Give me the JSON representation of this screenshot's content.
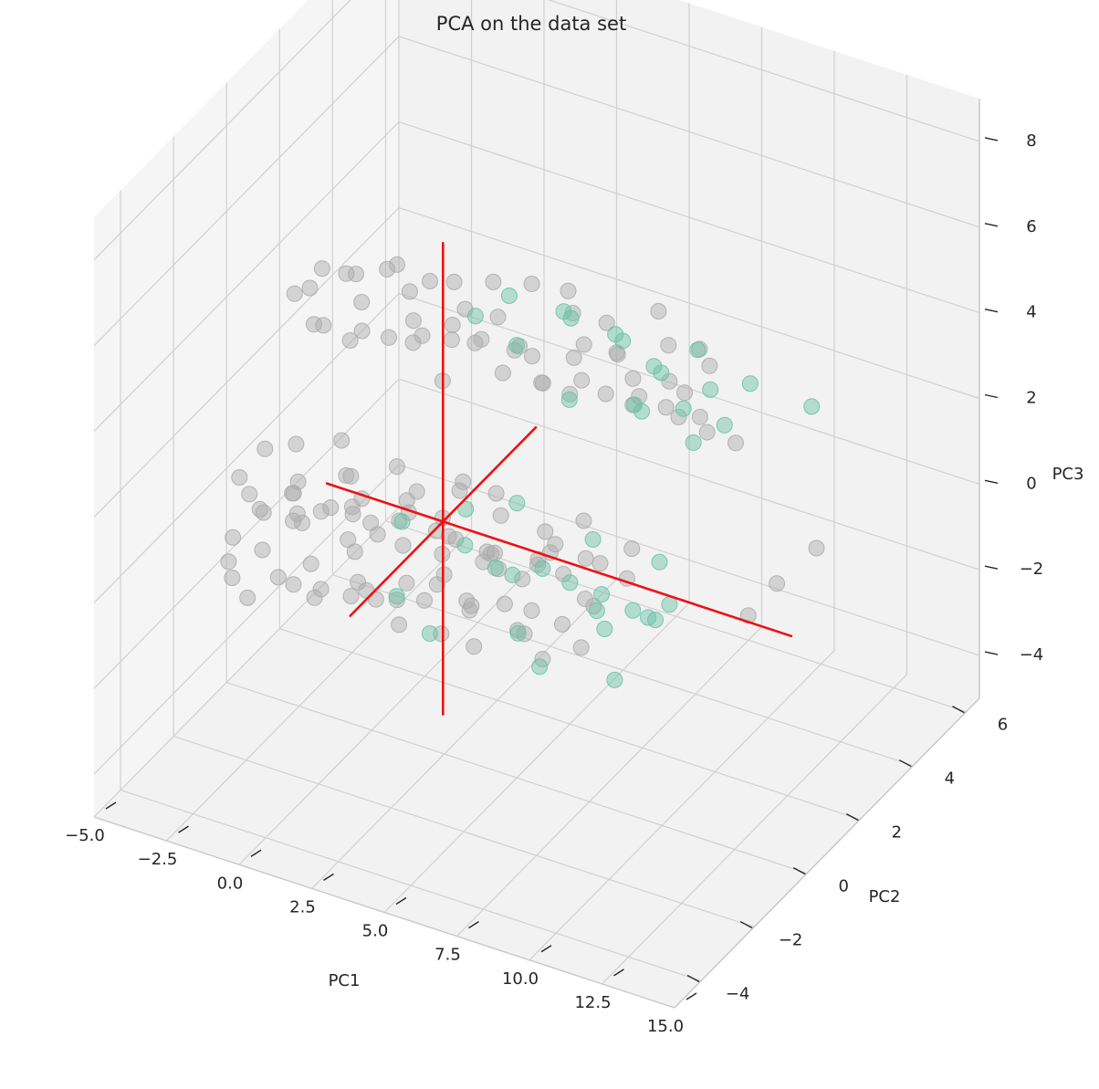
{
  "chart_data": {
    "type": "scatter",
    "projection": "3d",
    "title": "PCA on the data set",
    "xlabel": "PC1",
    "ylabel": "PC2",
    "zlabel": "PC3",
    "xlim": [
      -5.0,
      15.0
    ],
    "ylim": [
      -5.0,
      6.5
    ],
    "zlim": [
      -5.0,
      9.0
    ],
    "x_ticks": [
      "−5.0",
      "−2.5",
      "0.0",
      "2.5",
      "5.0",
      "7.5",
      "10.0",
      "12.5",
      "15.0"
    ],
    "y_ticks": [
      "−4",
      "−2",
      "0",
      "2",
      "4",
      "6"
    ],
    "z_ticks": [
      "−4",
      "−2",
      "0",
      "2",
      "4",
      "6",
      "8"
    ],
    "grid": true,
    "colors": {
      "class_a": "#aaaaaa",
      "class_b": "#66c2a5",
      "vectors": "#ee1111",
      "pane": "#f2f2f2",
      "grid": "#d0d0d0"
    },
    "marker_alpha": 0.45,
    "series": [
      {
        "color": "#aaaaaa",
        "points": [
          [
            -4.6,
            -0.2,
            -1.4
          ],
          [
            -4.4,
            0.6,
            -1.2
          ],
          [
            -4.2,
            -0.8,
            -1.5
          ],
          [
            -4.0,
            0.3,
            -1.0
          ],
          [
            -3.8,
            -1.1,
            -1.6
          ],
          [
            -3.6,
            1.0,
            -0.9
          ],
          [
            -3.4,
            -0.4,
            -1.3
          ],
          [
            -3.2,
            0.7,
            -1.1
          ],
          [
            -3.0,
            -1.4,
            -1.7
          ],
          [
            -2.8,
            0.1,
            -0.8
          ],
          [
            -2.6,
            1.3,
            -1.2
          ],
          [
            -2.4,
            -0.9,
            -1.4
          ],
          [
            -2.2,
            0.5,
            -0.7
          ],
          [
            -2.0,
            -0.1,
            -1.5
          ],
          [
            -1.8,
            1.6,
            -1.0
          ],
          [
            -1.6,
            -1.2,
            -1.2
          ],
          [
            -1.4,
            0.8,
            -0.6
          ],
          [
            -1.2,
            -0.6,
            -1.6
          ],
          [
            -1.0,
            0.2,
            -0.9
          ],
          [
            -0.8,
            1.1,
            -1.3
          ],
          [
            -0.6,
            -1.5,
            -1.1
          ],
          [
            -0.4,
            0.4,
            -0.5
          ],
          [
            -0.2,
            -0.3,
            -1.4
          ],
          [
            0.0,
            1.4,
            -0.8
          ],
          [
            0.2,
            -1.0,
            -1.2
          ],
          [
            0.4,
            0.6,
            -0.4
          ],
          [
            0.6,
            -0.5,
            -1.5
          ],
          [
            0.8,
            1.8,
            -1.0
          ],
          [
            1.0,
            -1.3,
            -0.7
          ],
          [
            1.2,
            0.0,
            -1.3
          ],
          [
            1.4,
            0.9,
            -0.6
          ],
          [
            1.6,
            -0.8,
            -1.1
          ],
          [
            1.8,
            1.2,
            -0.9
          ],
          [
            2.0,
            -0.2,
            -1.4
          ],
          [
            2.2,
            0.5,
            -0.3
          ],
          [
            2.4,
            -1.6,
            -1.0
          ],
          [
            2.6,
            1.5,
            -1.2
          ],
          [
            2.8,
            -0.6,
            -0.6
          ],
          [
            3.0,
            0.3,
            -1.5
          ],
          [
            3.2,
            1.0,
            -0.8
          ],
          [
            3.4,
            -1.1,
            -1.3
          ],
          [
            3.6,
            0.7,
            -0.5
          ],
          [
            3.8,
            -0.4,
            -1.0
          ],
          [
            4.0,
            1.3,
            -1.4
          ],
          [
            4.2,
            -0.9,
            -0.7
          ],
          [
            4.4,
            0.2,
            -1.2
          ],
          [
            4.6,
            1.7,
            -0.9
          ],
          [
            4.8,
            -1.4,
            -1.1
          ],
          [
            5.0,
            0.8,
            -0.4
          ],
          [
            5.3,
            -0.3,
            -1.3
          ],
          [
            5.6,
            1.1,
            -0.8
          ],
          [
            5.9,
            -0.7,
            -1.0
          ],
          [
            6.2,
            0.4,
            -1.4
          ],
          [
            6.5,
            1.5,
            -0.6
          ],
          [
            6.8,
            -1.0,
            -1.2
          ],
          [
            7.1,
            0.6,
            -0.9
          ],
          [
            7.4,
            -0.2,
            -1.3
          ],
          [
            7.7,
            1.2,
            -0.5
          ],
          [
            -4.5,
            0.9,
            0.0
          ],
          [
            -4.1,
            -0.5,
            0.3
          ],
          [
            -3.7,
            1.2,
            0.1
          ],
          [
            -3.3,
            -1.0,
            0.4
          ],
          [
            -2.9,
            0.4,
            -0.1
          ],
          [
            -2.5,
            1.6,
            0.2
          ],
          [
            -2.1,
            -0.7,
            0.5
          ],
          [
            -1.7,
            0.9,
            0.0
          ],
          [
            -1.3,
            -1.2,
            0.3
          ],
          [
            -0.9,
            0.2,
            0.6
          ],
          [
            -0.5,
            1.5,
            0.1
          ],
          [
            -0.1,
            -0.6,
            0.4
          ],
          [
            0.3,
            1.0,
            -0.2
          ],
          [
            0.7,
            -1.4,
            0.2
          ],
          [
            1.1,
            0.5,
            0.5
          ],
          [
            1.5,
            1.8,
            0.0
          ],
          [
            1.9,
            -0.9,
            0.3
          ],
          [
            2.3,
            0.8,
            0.6
          ],
          [
            2.7,
            -0.3,
            -0.1
          ],
          [
            3.1,
            1.3,
            0.4
          ],
          [
            3.5,
            -1.1,
            0.1
          ],
          [
            3.9,
            0.6,
            0.5
          ],
          [
            4.3,
            -0.5,
            0.2
          ],
          [
            4.7,
            1.4,
            -0.2
          ],
          [
            5.1,
            -0.8,
            0.4
          ],
          [
            5.5,
            0.9,
            0.0
          ],
          [
            5.9,
            -0.2,
            0.3
          ],
          [
            6.3,
            1.1,
            0.6
          ],
          [
            6.7,
            -1.3,
            0.1
          ],
          [
            7.1,
            0.3,
            0.4
          ],
          [
            7.5,
            1.6,
            -0.1
          ],
          [
            7.9,
            -0.6,
            0.2
          ],
          [
            -4.3,
            1.8,
            3.1
          ],
          [
            -3.9,
            2.4,
            3.4
          ],
          [
            -3.5,
            1.5,
            3.6
          ],
          [
            -3.1,
            2.8,
            3.2
          ],
          [
            -2.7,
            2.0,
            3.8
          ],
          [
            -2.3,
            3.1,
            3.3
          ],
          [
            -1.9,
            1.7,
            3.5
          ],
          [
            -1.5,
            2.6,
            3.9
          ],
          [
            -1.1,
            3.4,
            3.1
          ],
          [
            -0.7,
            2.2,
            3.7
          ],
          [
            -0.3,
            1.9,
            3.3
          ],
          [
            0.1,
            3.0,
            3.6
          ],
          [
            0.5,
            2.5,
            3.0
          ],
          [
            0.9,
            3.6,
            3.4
          ],
          [
            1.3,
            2.1,
            3.8
          ],
          [
            1.7,
            2.9,
            3.2
          ],
          [
            2.1,
            1.6,
            3.5
          ],
          [
            2.5,
            3.3,
            3.9
          ],
          [
            2.9,
            2.4,
            3.1
          ],
          [
            3.3,
            3.8,
            3.6
          ],
          [
            3.7,
            2.0,
            3.3
          ],
          [
            4.1,
            3.1,
            3.7
          ],
          [
            4.5,
            2.7,
            3.0
          ],
          [
            4.9,
            3.5,
            3.4
          ],
          [
            5.3,
            2.2,
            3.8
          ],
          [
            5.7,
            3.0,
            3.2
          ],
          [
            6.1,
            2.6,
            3.5
          ],
          [
            6.5,
            3.7,
            3.9
          ],
          [
            6.9,
            2.3,
            3.3
          ],
          [
            7.3,
            3.2,
            3.6
          ],
          [
            7.7,
            2.8,
            3.1
          ],
          [
            8.1,
            3.5,
            3.5
          ],
          [
            8.5,
            2.5,
            3.2
          ],
          [
            8.9,
            3.0,
            3.6
          ],
          [
            9.3,
            2.2,
            3.0
          ],
          [
            -4.0,
            2.2,
            2.2
          ],
          [
            -3.4,
            1.9,
            2.5
          ],
          [
            -2.8,
            2.7,
            2.0
          ],
          [
            -2.2,
            1.6,
            2.6
          ],
          [
            -1.6,
            2.4,
            2.3
          ],
          [
            -1.0,
            3.0,
            2.1
          ],
          [
            -0.4,
            2.0,
            2.7
          ],
          [
            0.2,
            2.8,
            2.4
          ],
          [
            0.8,
            1.8,
            2.2
          ],
          [
            1.4,
            2.6,
            2.8
          ],
          [
            2.0,
            3.2,
            2.3
          ],
          [
            2.6,
            2.1,
            2.6
          ],
          [
            3.2,
            2.9,
            2.0
          ],
          [
            3.8,
            2.3,
            2.5
          ],
          [
            4.4,
            3.1,
            2.2
          ],
          [
            5.0,
            2.0,
            2.7
          ],
          [
            5.6,
            2.7,
            2.4
          ],
          [
            6.2,
            3.3,
            2.1
          ],
          [
            6.8,
            2.4,
            2.6
          ],
          [
            7.4,
            3.0,
            2.3
          ],
          [
            8.2,
            2.6,
            2.5
          ],
          [
            9.0,
            2.8,
            2.2
          ],
          [
            9.8,
            3.0,
            2.0
          ],
          [
            12.4,
            3.2,
            0.0
          ],
          [
            11.4,
            2.8,
            -0.8
          ],
          [
            10.6,
            2.6,
            -1.6
          ]
        ]
      },
      {
        "color": "#66c2a5",
        "points": [
          [
            1.2,
            2.6,
            3.3
          ],
          [
            2.0,
            3.0,
            3.7
          ],
          [
            2.8,
            2.4,
            3.1
          ],
          [
            3.6,
            3.3,
            3.5
          ],
          [
            4.4,
            2.7,
            3.9
          ],
          [
            5.2,
            3.5,
            3.2
          ],
          [
            6.0,
            2.9,
            3.6
          ],
          [
            6.8,
            3.2,
            3.0
          ],
          [
            7.6,
            2.6,
            3.4
          ],
          [
            8.4,
            3.1,
            3.8
          ],
          [
            9.2,
            2.7,
            3.3
          ],
          [
            10.3,
            3.0,
            3.5
          ],
          [
            12.6,
            2.8,
            3.6
          ],
          [
            4.8,
            2.2,
            2.4
          ],
          [
            6.4,
            2.9,
            2.2
          ],
          [
            7.2,
            2.3,
            2.6
          ],
          [
            8.0,
            3.0,
            2.4
          ],
          [
            8.8,
            2.5,
            2.1
          ],
          [
            9.6,
            2.8,
            2.5
          ],
          [
            0.5,
            0.6,
            -0.4
          ],
          [
            1.5,
            -0.7,
            -1.1
          ],
          [
            2.3,
            1.0,
            -0.8
          ],
          [
            3.1,
            -1.2,
            -1.3
          ],
          [
            3.9,
            0.4,
            -0.6
          ],
          [
            4.7,
            1.3,
            -1.0
          ],
          [
            5.5,
            -0.5,
            -1.2
          ],
          [
            6.1,
            0.8,
            -0.7
          ],
          [
            6.7,
            -1.0,
            -1.4
          ],
          [
            7.3,
            0.5,
            -0.9
          ],
          [
            7.9,
            1.2,
            -1.2
          ],
          [
            8.3,
            -0.3,
            -0.6
          ],
          [
            8.7,
            0.9,
            -1.0
          ],
          [
            9.1,
            -0.8,
            -1.3
          ],
          [
            9.5,
            0.3,
            -0.5
          ],
          [
            2.6,
            0.7,
            0.3
          ],
          [
            4.0,
            1.1,
            0.5
          ],
          [
            5.4,
            -0.6,
            0.2
          ],
          [
            6.8,
            0.9,
            0.4
          ],
          [
            8.1,
            -0.2,
            0.1
          ],
          [
            9.0,
            1.0,
            0.3
          ],
          [
            9.8,
            0.5,
            -0.2
          ]
        ]
      }
    ],
    "vectors": [
      {
        "from": [
          2.0,
          0.5,
          0.0
        ],
        "to": [
          14.0,
          0.5,
          0.0
        ]
      },
      {
        "from": [
          2.0,
          0.5,
          0.0
        ],
        "to": [
          -2.0,
          0.5,
          0.0
        ]
      },
      {
        "from": [
          2.0,
          -3.0,
          0.0
        ],
        "to": [
          2.0,
          4.0,
          0.0
        ]
      },
      {
        "from": [
          2.0,
          0.5,
          -4.5
        ],
        "to": [
          2.0,
          0.5,
          6.5
        ]
      }
    ]
  }
}
